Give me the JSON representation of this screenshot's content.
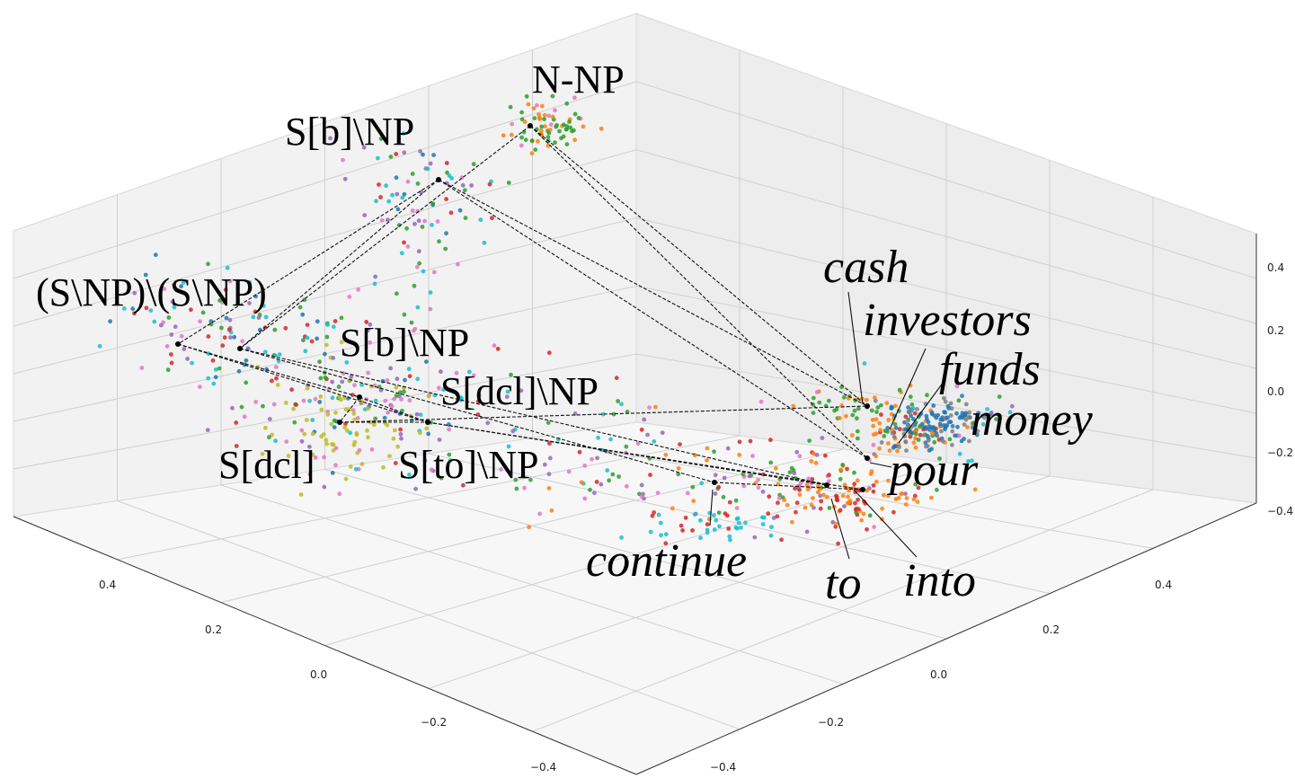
{
  "chart_data": {
    "type": "scatter",
    "projection": "3d",
    "grid": true,
    "axes": {
      "x": {
        "ticks": [
          "0.4",
          "0.2",
          "0.0",
          "−0.2",
          "−0.4"
        ]
      },
      "y": {
        "ticks": [
          "−0.4",
          "−0.2",
          "0.0",
          "0.2",
          "0.4"
        ]
      },
      "z": {
        "ticks": [
          "0.4",
          "0.2",
          "0.0",
          "−0.2",
          "−0.4"
        ]
      }
    },
    "category_labels": [
      "N-NP",
      "S[b]\\NP",
      "(S\\NP)\\(S\\NP)",
      "S[b]\\NP",
      "S[dcl]\\NP",
      "S[dcl]",
      "S[to]\\NP"
    ],
    "word_labels": [
      "cash",
      "investors",
      "funds",
      "money",
      "pour",
      "continue",
      "to",
      "into"
    ],
    "point_colors": [
      "#1f77b4",
      "#ff7f0e",
      "#2ca02c",
      "#d62728",
      "#9467bd",
      "#8c564b",
      "#e377c2",
      "#7f7f7f",
      "#bcbd22",
      "#17becf"
    ]
  }
}
